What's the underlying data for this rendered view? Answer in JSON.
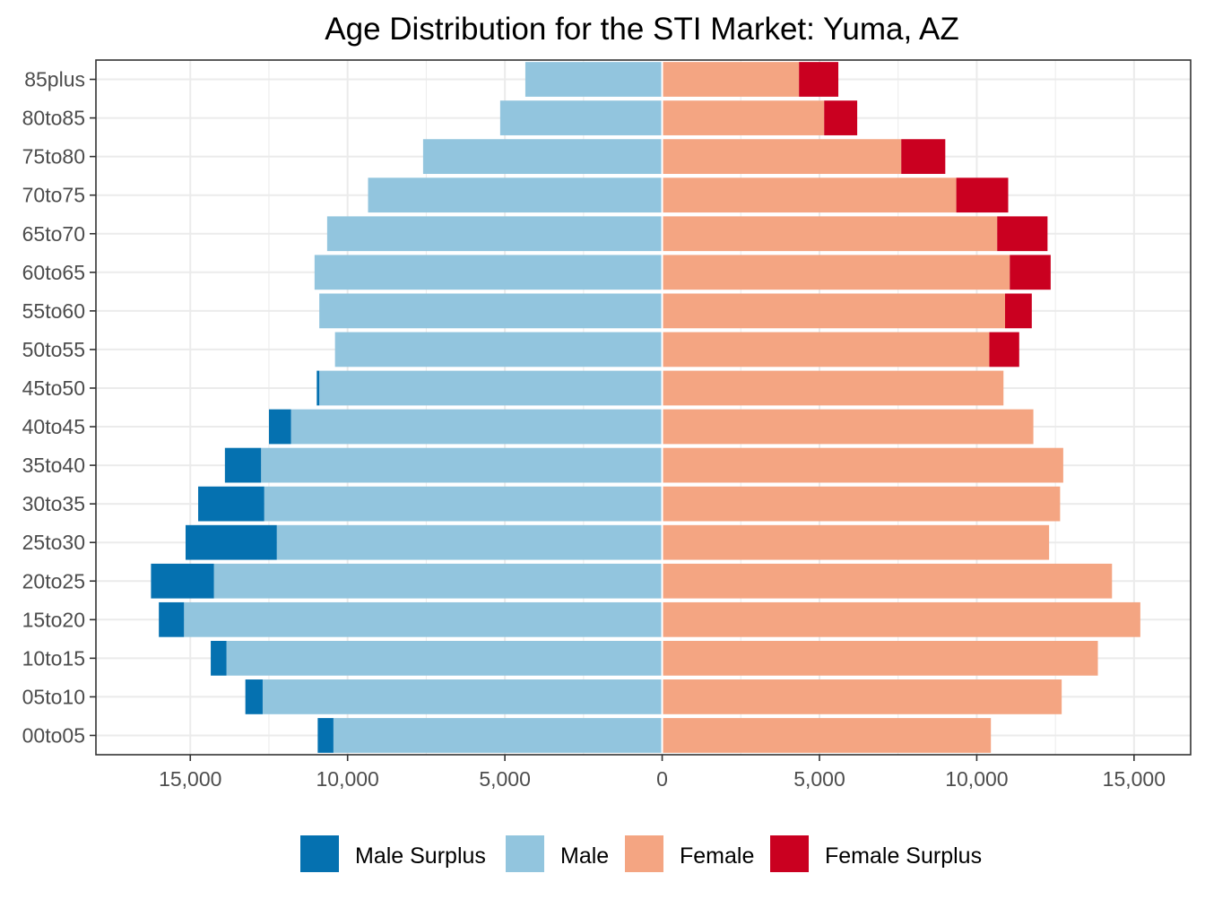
{
  "chart_data": {
    "type": "bar",
    "orientation": "horizontal",
    "layout": "population-pyramid",
    "title": "Age Distribution for the STI Market: Yuma, AZ",
    "xlabel": "",
    "ylabel": "",
    "xlim": [
      -18000,
      16800
    ],
    "x_ticks": [
      -15000,
      -10000,
      -5000,
      0,
      5000,
      10000,
      15000
    ],
    "x_tick_labels": [
      "15,000",
      "10,000",
      "5,000",
      "0",
      "5,000",
      "10,000",
      "15,000"
    ],
    "grid": true,
    "legend_position": "bottom",
    "categories": [
      "00to05",
      "05to10",
      "10to15",
      "15to20",
      "20to25",
      "25to30",
      "30to35",
      "35to40",
      "40to45",
      "45to50",
      "50to55",
      "55to60",
      "60to65",
      "65to70",
      "70to75",
      "75to80",
      "80to85",
      "85plus"
    ],
    "series": [
      {
        "name": "Male Surplus",
        "color": "#0571b0",
        "side": "left",
        "values": [
          500,
          550,
          500,
          800,
          2000,
          2900,
          2100,
          1150,
          700,
          80,
          0,
          0,
          0,
          0,
          0,
          0,
          0,
          0
        ]
      },
      {
        "name": "Male",
        "color": "#92c5de",
        "side": "left",
        "values": [
          10450,
          12700,
          13850,
          15200,
          14250,
          12250,
          12650,
          12750,
          11800,
          10900,
          10400,
          10900,
          11050,
          10650,
          9350,
          7600,
          5150,
          4350
        ]
      },
      {
        "name": "Female",
        "color": "#f4a582",
        "side": "right",
        "values": [
          10450,
          12700,
          13850,
          15200,
          14300,
          12300,
          12650,
          12750,
          11800,
          10850,
          10400,
          10900,
          11050,
          10650,
          9350,
          7600,
          5150,
          4350
        ]
      },
      {
        "name": "Female Surplus",
        "color": "#ca0020",
        "side": "right",
        "values": [
          0,
          0,
          0,
          0,
          0,
          0,
          0,
          0,
          0,
          0,
          950,
          850,
          1300,
          1600,
          1650,
          1400,
          1050,
          1250
        ]
      }
    ],
    "legend": [
      "Male Surplus",
      "Male",
      "Female",
      "Female Surplus"
    ]
  }
}
